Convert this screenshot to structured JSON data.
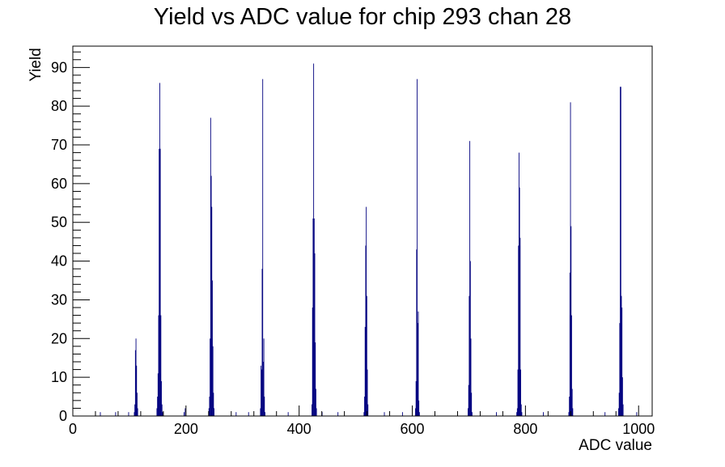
{
  "chart_data": {
    "type": "bar",
    "title": "Yield vs ADC value for chip 293 chan 28",
    "xlabel": "ADC value",
    "ylabel": "Yield",
    "xlim": [
      0,
      1024
    ],
    "ylim": [
      0,
      95.5
    ],
    "grid": false,
    "legend": "none",
    "bin_width": 1,
    "x_ticks": [
      0,
      200,
      400,
      600,
      800,
      1000
    ],
    "y_ticks": [
      0,
      10,
      20,
      30,
      40,
      50,
      60,
      70,
      80,
      90
    ],
    "bar_color": "#00007f",
    "bins": [
      {
        "x": 48,
        "y": 1
      },
      {
        "x": 75,
        "y": 1
      },
      {
        "x": 98,
        "y": 1
      },
      {
        "x": 108,
        "y": 1
      },
      {
        "x": 109,
        "y": 3
      },
      {
        "x": 110,
        "y": 17
      },
      {
        "x": 111,
        "y": 20
      },
      {
        "x": 112,
        "y": 13
      },
      {
        "x": 113,
        "y": 6
      },
      {
        "x": 114,
        "y": 2
      },
      {
        "x": 148,
        "y": 2
      },
      {
        "x": 149,
        "y": 5
      },
      {
        "x": 150,
        "y": 11
      },
      {
        "x": 151,
        "y": 26
      },
      {
        "x": 152,
        "y": 69
      },
      {
        "x": 153,
        "y": 86
      },
      {
        "x": 154,
        "y": 69
      },
      {
        "x": 155,
        "y": 26
      },
      {
        "x": 156,
        "y": 9
      },
      {
        "x": 157,
        "y": 3
      },
      {
        "x": 158,
        "y": 1
      },
      {
        "x": 196,
        "y": 1
      },
      {
        "x": 198,
        "y": 2
      },
      {
        "x": 240,
        "y": 2
      },
      {
        "x": 241,
        "y": 5
      },
      {
        "x": 242,
        "y": 20
      },
      {
        "x": 243,
        "y": 77
      },
      {
        "x": 244,
        "y": 62
      },
      {
        "x": 245,
        "y": 54
      },
      {
        "x": 246,
        "y": 35
      },
      {
        "x": 247,
        "y": 18
      },
      {
        "x": 248,
        "y": 6
      },
      {
        "x": 249,
        "y": 2
      },
      {
        "x": 288,
        "y": 1
      },
      {
        "x": 310,
        "y": 1
      },
      {
        "x": 331,
        "y": 2
      },
      {
        "x": 332,
        "y": 13
      },
      {
        "x": 333,
        "y": 12
      },
      {
        "x": 334,
        "y": 38
      },
      {
        "x": 335,
        "y": 87
      },
      {
        "x": 336,
        "y": 14
      },
      {
        "x": 337,
        "y": 20
      },
      {
        "x": 338,
        "y": 5
      },
      {
        "x": 339,
        "y": 1
      },
      {
        "x": 380,
        "y": 1
      },
      {
        "x": 422,
        "y": 3
      },
      {
        "x": 423,
        "y": 28
      },
      {
        "x": 424,
        "y": 51
      },
      {
        "x": 425,
        "y": 91
      },
      {
        "x": 426,
        "y": 51
      },
      {
        "x": 427,
        "y": 42
      },
      {
        "x": 428,
        "y": 19
      },
      {
        "x": 429,
        "y": 7
      },
      {
        "x": 430,
        "y": 2
      },
      {
        "x": 440,
        "y": 1
      },
      {
        "x": 468,
        "y": 1
      },
      {
        "x": 514,
        "y": 1
      },
      {
        "x": 515,
        "y": 5
      },
      {
        "x": 516,
        "y": 23
      },
      {
        "x": 517,
        "y": 44
      },
      {
        "x": 518,
        "y": 54
      },
      {
        "x": 519,
        "y": 31
      },
      {
        "x": 520,
        "y": 12
      },
      {
        "x": 521,
        "y": 3
      },
      {
        "x": 550,
        "y": 1
      },
      {
        "x": 582,
        "y": 1
      },
      {
        "x": 605,
        "y": 2
      },
      {
        "x": 606,
        "y": 9
      },
      {
        "x": 607,
        "y": 43
      },
      {
        "x": 608,
        "y": 87
      },
      {
        "x": 609,
        "y": 24
      },
      {
        "x": 610,
        "y": 27
      },
      {
        "x": 611,
        "y": 4
      },
      {
        "x": 612,
        "y": 1
      },
      {
        "x": 698,
        "y": 2
      },
      {
        "x": 699,
        "y": 8
      },
      {
        "x": 700,
        "y": 31
      },
      {
        "x": 701,
        "y": 71
      },
      {
        "x": 702,
        "y": 40
      },
      {
        "x": 703,
        "y": 20
      },
      {
        "x": 704,
        "y": 6
      },
      {
        "x": 705,
        "y": 1
      },
      {
        "x": 748,
        "y": 1
      },
      {
        "x": 784,
        "y": 1
      },
      {
        "x": 785,
        "y": 2
      },
      {
        "x": 786,
        "y": 12
      },
      {
        "x": 787,
        "y": 44
      },
      {
        "x": 788,
        "y": 68
      },
      {
        "x": 789,
        "y": 59
      },
      {
        "x": 790,
        "y": 46
      },
      {
        "x": 791,
        "y": 12
      },
      {
        "x": 792,
        "y": 3
      },
      {
        "x": 793,
        "y": 1
      },
      {
        "x": 831,
        "y": 1
      },
      {
        "x": 876,
        "y": 1
      },
      {
        "x": 877,
        "y": 5
      },
      {
        "x": 878,
        "y": 37
      },
      {
        "x": 879,
        "y": 81
      },
      {
        "x": 880,
        "y": 49
      },
      {
        "x": 881,
        "y": 26
      },
      {
        "x": 882,
        "y": 7
      },
      {
        "x": 883,
        "y": 2
      },
      {
        "x": 940,
        "y": 1
      },
      {
        "x": 964,
        "y": 2
      },
      {
        "x": 965,
        "y": 6
      },
      {
        "x": 966,
        "y": 24
      },
      {
        "x": 967,
        "y": 85
      },
      {
        "x": 968,
        "y": 85
      },
      {
        "x": 969,
        "y": 31
      },
      {
        "x": 970,
        "y": 28
      },
      {
        "x": 971,
        "y": 10
      },
      {
        "x": 972,
        "y": 3
      },
      {
        "x": 996,
        "y": 1
      }
    ]
  }
}
